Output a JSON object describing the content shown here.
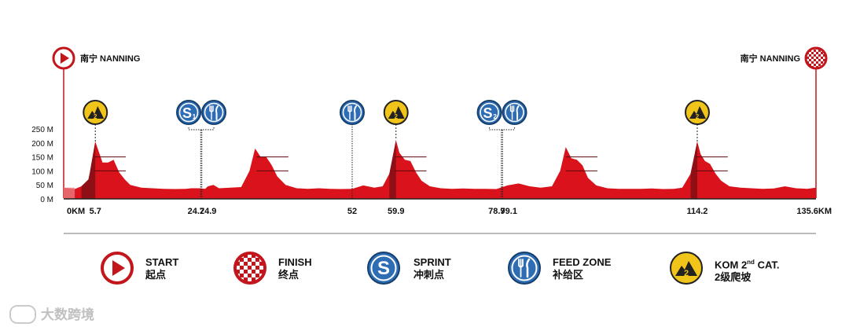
{
  "start_city": "南宁 NANNING",
  "finish_city": "南宁 NANNING",
  "colors": {
    "profile": "#d9121b",
    "profile_dark": "#8e1016",
    "start_ring": "#c3161c",
    "sprint_blue": "#2e6db4",
    "kom_yellow": "#f0c419",
    "axis": "#222222"
  },
  "chart_data": {
    "type": "area",
    "xlabel": "",
    "ylabel": "",
    "x_unit": "KM",
    "y_unit": "M",
    "xlim": [
      0,
      135.6
    ],
    "ylim": [
      0,
      250
    ],
    "y_ticks": [
      {
        "value": 0,
        "label": "0 M"
      },
      {
        "value": 50,
        "label": "50 M"
      },
      {
        "value": 100,
        "label": "100 M"
      },
      {
        "value": 150,
        "label": "150 M"
      },
      {
        "value": 200,
        "label": "200 M"
      },
      {
        "value": 250,
        "label": "250 M"
      }
    ],
    "x_ticks": [
      {
        "value": 0,
        "label": "0KM"
      },
      {
        "value": 5.7,
        "label": "5.7"
      },
      {
        "value": 24.7,
        "label": "24.7"
      },
      {
        "value": 24.9,
        "label": "24.9"
      },
      {
        "value": 52,
        "label": "52"
      },
      {
        "value": 59.9,
        "label": "59.9"
      },
      {
        "value": 78.9,
        "label": "78.9"
      },
      {
        "value": 79.1,
        "label": "79.1"
      },
      {
        "value": 114.2,
        "label": "114.2"
      },
      {
        "value": 135.6,
        "label": "135.6KM"
      }
    ],
    "elevation": {
      "x": [
        0,
        2,
        3.2,
        4.5,
        5.7,
        6.3,
        7,
        8,
        9,
        10,
        11,
        12,
        14,
        16,
        18,
        20,
        22,
        23,
        24.5,
        25.5,
        26,
        27,
        28,
        30,
        32,
        33.5,
        34.5,
        35.5,
        36.5,
        37.5,
        38.5,
        40,
        42,
        44,
        46,
        48,
        50,
        52,
        54,
        56,
        57.5,
        58.7,
        59.9,
        60.5,
        61.5,
        62.5,
        63.5,
        64.5,
        66,
        68,
        70,
        72,
        74,
        76,
        78,
        80,
        82,
        84,
        86,
        88,
        89.5,
        90.5,
        91.5,
        92.5,
        93.5,
        94.5,
        96,
        98,
        100,
        102,
        104,
        106,
        108,
        110,
        111.5,
        113,
        114.2,
        114.8,
        115.6,
        116.5,
        117.5,
        118.5,
        120,
        122,
        124,
        126,
        128,
        130,
        132,
        134,
        135.6
      ],
      "y": [
        40,
        35,
        45,
        70,
        205,
        170,
        130,
        130,
        140,
        95,
        70,
        50,
        40,
        38,
        36,
        35,
        36,
        38,
        38,
        36,
        45,
        50,
        38,
        40,
        42,
        100,
        180,
        150,
        150,
        120,
        80,
        50,
        38,
        36,
        38,
        36,
        35,
        36,
        48,
        40,
        45,
        90,
        210,
        165,
        140,
        135,
        95,
        65,
        45,
        38,
        36,
        37,
        36,
        36,
        35,
        48,
        55,
        45,
        40,
        45,
        100,
        185,
        145,
        140,
        120,
        75,
        48,
        38,
        36,
        36,
        36,
        37,
        35,
        36,
        40,
        90,
        205,
        160,
        135,
        125,
        90,
        65,
        45,
        40,
        38,
        36,
        37,
        45,
        38,
        36,
        40
      ]
    },
    "climb_segments": [
      {
        "x0": 3.2,
        "x1": 5.7
      },
      {
        "x0": 58.7,
        "x1": 59.9
      },
      {
        "x0": 113,
        "x1": 114.2
      }
    ],
    "markers": [
      {
        "type": "kom",
        "km": 5.7,
        "label": "2"
      },
      {
        "type": "sprint",
        "km": 24.7,
        "label": "S",
        "sub": "1"
      },
      {
        "type": "feed",
        "km": 24.9
      },
      {
        "type": "feed",
        "km": 52
      },
      {
        "type": "kom",
        "km": 59.9,
        "label": "2"
      },
      {
        "type": "sprint",
        "km": 78.9,
        "label": "S",
        "sub": "2"
      },
      {
        "type": "feed",
        "km": 79.1
      },
      {
        "type": "kom",
        "km": 114.2,
        "label": "2"
      }
    ]
  },
  "legend": [
    {
      "icon": "start",
      "en": "START",
      "zh": "起点"
    },
    {
      "icon": "finish",
      "en": "FINISH",
      "zh": "终点"
    },
    {
      "icon": "sprint",
      "en": "SPRINT",
      "zh": "冲刺点",
      "glyph": "S"
    },
    {
      "icon": "feed",
      "en": "FEED ZONE",
      "zh": "补给区"
    },
    {
      "icon": "kom",
      "en_main": "KOM 2",
      "en_sup": "nd",
      "en_tail": " CAT.",
      "zh": "2级爬坡",
      "glyph": "2"
    }
  ],
  "watermark": "大数跨境"
}
